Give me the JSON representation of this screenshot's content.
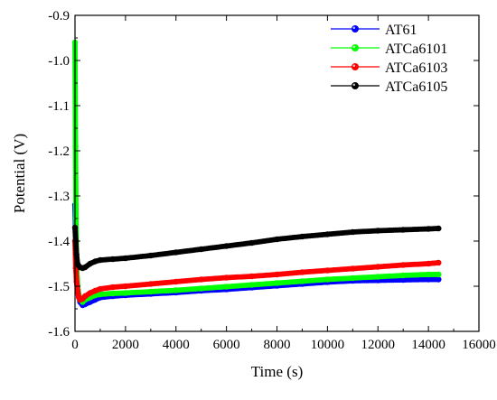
{
  "chart_data": {
    "type": "scatter",
    "xlabel": "Time (s)",
    "ylabel": "Potential (V)",
    "xlim": [
      0,
      16000
    ],
    "ylim": [
      -1.6,
      -0.9
    ],
    "y_inverted": true,
    "x_ticks": [
      0,
      2000,
      4000,
      6000,
      8000,
      10000,
      12000,
      14000,
      16000
    ],
    "x_tick_labels": [
      "0",
      "2000",
      "4000",
      "6000",
      "8000",
      "10000",
      "12000",
      "14000",
      "16000"
    ],
    "y_ticks": [
      -0.9,
      -1.0,
      -1.1,
      -1.2,
      -1.3,
      -1.4,
      -1.5,
      -1.6
    ],
    "y_tick_labels": [
      "-0.9",
      "-1.0",
      "-1.1",
      "-1.2",
      "-1.3",
      "-1.4",
      "-1.5",
      "-1.6"
    ],
    "grid": false,
    "legend_position": "top-right",
    "series": [
      {
        "name": "AT61",
        "color": "#0000ff",
        "x": [
          0,
          30,
          60,
          100,
          150,
          200,
          300,
          400,
          600,
          800,
          1000,
          1500,
          2000,
          3000,
          4000,
          5000,
          6000,
          7000,
          8000,
          9000,
          10000,
          11000,
          12000,
          13000,
          14000,
          14400
        ],
        "y": [
          -1.32,
          -1.4,
          -1.46,
          -1.5,
          -1.52,
          -1.535,
          -1.542,
          -1.54,
          -1.535,
          -1.53,
          -1.525,
          -1.522,
          -1.52,
          -1.517,
          -1.514,
          -1.51,
          -1.507,
          -1.503,
          -1.499,
          -1.495,
          -1.491,
          -1.488,
          -1.487,
          -1.486,
          -1.485,
          -1.485
        ]
      },
      {
        "name": "ATCa6101",
        "color": "#00ff00",
        "x": [
          0,
          20,
          40,
          60,
          100,
          150,
          200,
          300,
          400,
          600,
          800,
          1000,
          1500,
          2000,
          3000,
          4000,
          5000,
          6000,
          7000,
          8000,
          9000,
          10000,
          11000,
          12000,
          13000,
          14000,
          14400
        ],
        "y": [
          -0.96,
          -1.19,
          -1.35,
          -1.45,
          -1.5,
          -1.52,
          -1.53,
          -1.535,
          -1.53,
          -1.525,
          -1.52,
          -1.518,
          -1.516,
          -1.515,
          -1.512,
          -1.509,
          -1.505,
          -1.501,
          -1.497,
          -1.493,
          -1.489,
          -1.485,
          -1.482,
          -1.479,
          -1.476,
          -1.474,
          -1.474
        ]
      },
      {
        "name": "ATCa6103",
        "color": "#ff0000",
        "x": [
          0,
          30,
          60,
          100,
          150,
          200,
          300,
          400,
          600,
          800,
          1000,
          1500,
          2000,
          3000,
          4000,
          5000,
          6000,
          7000,
          8000,
          9000,
          10000,
          11000,
          12000,
          13000,
          14000,
          14400
        ],
        "y": [
          -1.4,
          -1.46,
          -1.49,
          -1.51,
          -1.525,
          -1.53,
          -1.528,
          -1.522,
          -1.515,
          -1.51,
          -1.506,
          -1.502,
          -1.5,
          -1.495,
          -1.49,
          -1.485,
          -1.481,
          -1.478,
          -1.474,
          -1.469,
          -1.465,
          -1.461,
          -1.457,
          -1.453,
          -1.45,
          -1.448
        ]
      },
      {
        "name": "ATCa6105",
        "color": "#000000",
        "x": [
          0,
          30,
          60,
          100,
          150,
          200,
          300,
          400,
          600,
          800,
          1000,
          1500,
          2000,
          3000,
          4000,
          5000,
          6000,
          7000,
          8000,
          9000,
          10000,
          11000,
          12000,
          13000,
          14000,
          14400
        ],
        "y": [
          -1.37,
          -1.4,
          -1.43,
          -1.45,
          -1.455,
          -1.458,
          -1.46,
          -1.458,
          -1.45,
          -1.445,
          -1.442,
          -1.44,
          -1.438,
          -1.432,
          -1.425,
          -1.418,
          -1.411,
          -1.404,
          -1.396,
          -1.39,
          -1.385,
          -1.38,
          -1.377,
          -1.375,
          -1.373,
          -1.372
        ]
      }
    ]
  }
}
